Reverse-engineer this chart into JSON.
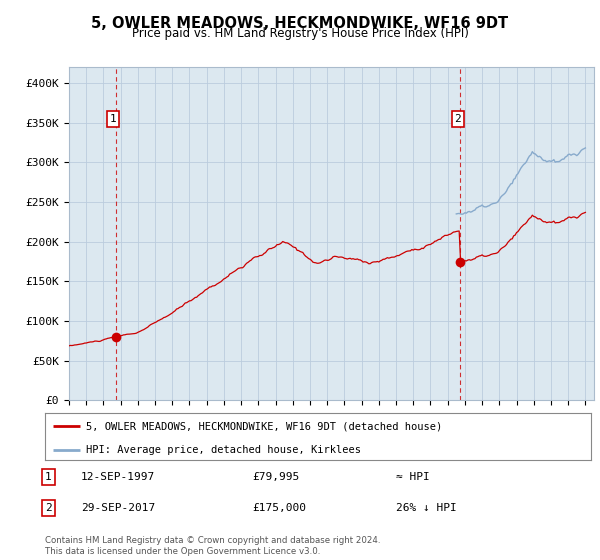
{
  "title": "5, OWLER MEADOWS, HECKMONDWIKE, WF16 9DT",
  "subtitle": "Price paid vs. HM Land Registry's House Price Index (HPI)",
  "title_fontsize": 10.5,
  "subtitle_fontsize": 8.5,
  "xlim": [
    1995.0,
    2025.5
  ],
  "ylim": [
    0,
    420000
  ],
  "yticks": [
    0,
    50000,
    100000,
    150000,
    200000,
    250000,
    300000,
    350000,
    400000
  ],
  "ytick_labels": [
    "£0",
    "£50K",
    "£100K",
    "£150K",
    "£200K",
    "£250K",
    "£300K",
    "£350K",
    "£400K"
  ],
  "xtick_years": [
    1995,
    1996,
    1997,
    1998,
    1999,
    2000,
    2001,
    2002,
    2003,
    2004,
    2005,
    2006,
    2007,
    2008,
    2009,
    2010,
    2011,
    2012,
    2013,
    2014,
    2015,
    2016,
    2017,
    2018,
    2019,
    2020,
    2021,
    2022,
    2023,
    2024,
    2025
  ],
  "sale1_x": 1997.71,
  "sale1_y": 79995,
  "sale1_label": "1",
  "sale2_x": 2017.74,
  "sale2_y": 175000,
  "sale2_label": "2",
  "red_line_color": "#cc0000",
  "blue_line_color": "#88aacc",
  "sale_dot_color": "#cc0000",
  "vline_color": "#cc0000",
  "grid_color": "#bbccdd",
  "bg_color": "#ffffff",
  "plot_bg_color": "#dce8f0",
  "legend_line1": "5, OWLER MEADOWS, HECKMONDWIKE, WF16 9DT (detached house)",
  "legend_line2": "HPI: Average price, detached house, Kirklees",
  "table_row1": [
    "1",
    "12-SEP-1997",
    "£79,995",
    "≈ HPI"
  ],
  "table_row2": [
    "2",
    "29-SEP-2017",
    "£175,000",
    "26% ↓ HPI"
  ],
  "footnote": "Contains HM Land Registry data © Crown copyright and database right 2024.\nThis data is licensed under the Open Government Licence v3.0."
}
